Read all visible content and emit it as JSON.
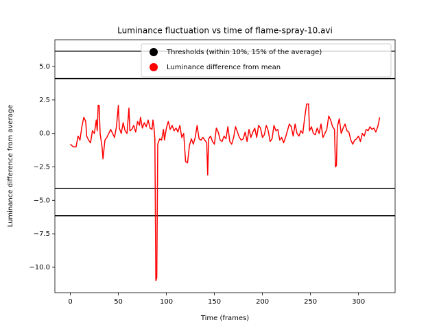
{
  "chart_data": {
    "type": "line",
    "title": "Luminance fluctuation vs time of flame-spray-10.avi",
    "x_label": "Time (frames)",
    "y_label": "Luminance difference from average",
    "xlim": [
      -16.1,
      338.1
    ],
    "ylim": [
      -11.9,
      7.0
    ],
    "xticks": [
      0,
      50,
      100,
      150,
      200,
      250,
      300
    ],
    "yticks": [
      {
        "value": -10,
        "label": "−10.0"
      },
      {
        "value": -7.5,
        "label": "−7.5"
      },
      {
        "value": -5,
        "label": "−5.0"
      },
      {
        "value": -2.5,
        "label": "−2.5"
      },
      {
        "value": 0,
        "label": "0.0"
      },
      {
        "value": 2.5,
        "label": "2.5"
      },
      {
        "value": 5,
        "label": "5.0"
      }
    ],
    "legend": "upper right",
    "series": [
      {
        "name": "Thresholds (within 10%, 15% of the average)",
        "color": "#000000",
        "kind": "hline",
        "values": [
          6.15,
          4.1,
          -4.1,
          -6.15
        ]
      },
      {
        "name": "Luminance difference from mean",
        "color": "#ff0000",
        "kind": "line",
        "x": [
          0,
          3,
          6,
          8,
          10,
          12,
          14,
          16,
          17,
          19,
          21,
          23,
          25,
          27,
          28,
          29,
          30,
          31,
          33,
          34,
          36,
          38,
          40,
          42,
          44,
          46,
          48,
          50,
          51,
          53,
          55,
          57,
          59,
          61,
          62,
          64,
          66,
          68,
          70,
          72,
          73,
          75,
          77,
          79,
          81,
          83,
          85,
          86,
          87,
          88,
          89,
          90,
          91,
          93,
          95,
          97,
          98,
          100,
          102,
          104,
          106,
          108,
          110,
          112,
          114,
          116,
          118,
          120,
          122,
          124,
          126,
          128,
          130,
          132,
          134,
          136,
          138,
          140,
          142,
          143,
          144,
          146,
          148,
          150,
          152,
          154,
          156,
          158,
          160,
          162,
          164,
          166,
          168,
          170,
          172,
          174,
          176,
          178,
          180,
          182,
          184,
          186,
          188,
          190,
          192,
          194,
          196,
          198,
          200,
          202,
          204,
          206,
          208,
          210,
          212,
          214,
          216,
          218,
          220,
          222,
          224,
          226,
          228,
          230,
          232,
          234,
          236,
          238,
          240,
          242,
          244,
          246,
          248,
          249,
          251,
          253,
          255,
          257,
          259,
          261,
          263,
          265,
          267,
          269,
          271,
          273,
          275,
          276,
          277,
          278,
          280,
          282,
          284,
          286,
          288,
          290,
          292,
          294,
          296,
          298,
          300,
          302,
          304,
          306,
          308,
          310,
          312,
          314,
          316,
          318,
          320,
          321,
          322
        ],
        "values": [
          -0.8,
          -1.0,
          -1.0,
          -0.2,
          -0.5,
          0.5,
          1.2,
          0.9,
          -0.2,
          -0.5,
          -0.7,
          0.2,
          0.0,
          1.0,
          0.2,
          2.1,
          2.1,
          0.0,
          -1.0,
          -1.9,
          -0.5,
          -0.3,
          0.0,
          0.3,
          0.0,
          -0.3,
          0.5,
          2.1,
          0.4,
          0.0,
          0.8,
          0.2,
          0.0,
          1.9,
          0.2,
          0.3,
          0.6,
          0.1,
          0.9,
          0.6,
          1.2,
          0.4,
          0.8,
          0.5,
          1.0,
          0.4,
          0.3,
          1.0,
          0.5,
          -0.4,
          -11.0,
          -10.8,
          -0.8,
          -0.4,
          -0.5,
          0.3,
          -0.5,
          0.4,
          0.9,
          0.3,
          0.6,
          0.2,
          0.4,
          0.1,
          0.6,
          -0.3,
          0.0,
          -2.1,
          -2.2,
          -0.9,
          -0.4,
          -0.8,
          -0.3,
          0.6,
          -0.4,
          -0.5,
          -0.3,
          -0.5,
          -0.7,
          -3.1,
          -0.4,
          -0.2,
          -0.6,
          -0.8,
          0.4,
          0.1,
          -0.5,
          -0.6,
          -0.2,
          -0.4,
          0.5,
          -0.6,
          -0.8,
          -0.3,
          0.5,
          0.1,
          -0.3,
          -0.5,
          -0.4,
          0.1,
          -0.6,
          0.3,
          -0.3,
          0.1,
          0.4,
          -0.3,
          0.6,
          0.4,
          -0.3,
          -0.1,
          0.6,
          0.2,
          -0.6,
          -0.4,
          0.6,
          0.2,
          0.3,
          -0.5,
          -0.3,
          -0.7,
          -0.3,
          0.2,
          0.7,
          0.5,
          -0.2,
          0.7,
          0.0,
          -0.2,
          0.2,
          0.0,
          1.2,
          2.2,
          2.2,
          0.2,
          0.5,
          0.0,
          -0.1,
          0.4,
          0.0,
          0.7,
          -0.3,
          0.0,
          0.3,
          1.3,
          1.0,
          0.5,
          0.3,
          -2.5,
          -2.4,
          0.5,
          1.1,
          0.0,
          0.4,
          0.7,
          0.2,
          0.1,
          -0.5,
          -0.8,
          -0.5,
          -0.4,
          -0.2,
          -0.6,
          0.0,
          -0.2,
          0.3,
          0.2,
          0.5,
          0.3,
          0.4,
          0.1,
          0.5,
          0.8,
          1.2
        ]
      }
    ]
  }
}
